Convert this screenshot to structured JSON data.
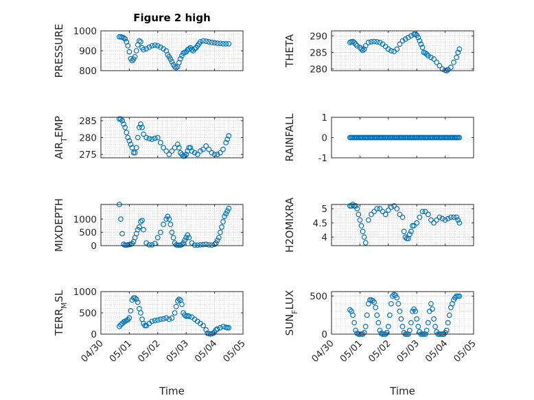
{
  "colors": {
    "marker": "#0072BD",
    "axis": "#262626",
    "grid": "#b0b0b0",
    "background": "#ffffff"
  },
  "chart_data": [
    {
      "type": "scatter",
      "id": "pressure",
      "title": "Figure 2 high",
      "ylabel": "PRESSURE",
      "xlabel": "",
      "ylim": [
        800,
        1000
      ],
      "yticks": [
        800,
        900,
        1000
      ],
      "ytick_labels": [
        "800",
        "900",
        "1000"
      ],
      "xlim": [
        0,
        5
      ],
      "xticks": [
        0,
        1,
        2,
        3,
        4,
        5
      ],
      "xtick_labels": [
        "04/30",
        "05/01",
        "05/02",
        "05/03",
        "05/04",
        "05/05"
      ],
      "show_xtick_labels": false,
      "grid": true,
      "minor_grid": true,
      "marker": "o",
      "x_units": "days from 04/30 00:00",
      "x": [
        0.65,
        0.7,
        0.75,
        0.8,
        0.85,
        0.9,
        0.95,
        1.0,
        1.05,
        1.1,
        1.15,
        1.2,
        1.25,
        1.3,
        1.35,
        1.4,
        1.45,
        1.5,
        1.6,
        1.7,
        1.8,
        1.9,
        2.0,
        2.1,
        2.2,
        2.3,
        2.35,
        2.4,
        2.45,
        2.5,
        2.55,
        2.6,
        2.65,
        2.7,
        2.75,
        2.8,
        2.85,
        2.9,
        2.95,
        3.0,
        3.05,
        3.1,
        3.15,
        3.2,
        3.25,
        3.3,
        3.35,
        3.4,
        3.45,
        3.5,
        3.6,
        3.7,
        3.8,
        3.9,
        4.0,
        4.1,
        4.2,
        4.3,
        4.4,
        4.5
      ],
      "y": [
        970,
        970,
        968,
        965,
        960,
        945,
        925,
        895,
        860,
        850,
        858,
        870,
        900,
        930,
        950,
        945,
        915,
        905,
        910,
        918,
        925,
        928,
        925,
        918,
        910,
        900,
        880,
        870,
        858,
        845,
        830,
        820,
        815,
        820,
        840,
        860,
        875,
        888,
        892,
        895,
        905,
        910,
        915,
        905,
        900,
        910,
        915,
        925,
        935,
        945,
        950,
        948,
        945,
        942,
        940,
        938,
        937,
        935,
        935,
        935
      ]
    },
    {
      "type": "scatter",
      "id": "theta",
      "ylabel": "THETA",
      "xlabel": "",
      "ylim": [
        279.5,
        291.5
      ],
      "yticks": [
        280,
        285,
        290
      ],
      "ytick_labels": [
        "280",
        "285",
        "290"
      ],
      "xlim": [
        0,
        5
      ],
      "xticks": [
        0,
        1,
        2,
        3,
        4,
        5
      ],
      "xtick_labels": [
        "04/30",
        "05/01",
        "05/02",
        "05/03",
        "05/04",
        "05/05"
      ],
      "show_xtick_labels": false,
      "grid": true,
      "minor_grid": true,
      "marker": "o",
      "x_units": "days from 04/30 00:00",
      "x": [
        0.65,
        0.7,
        0.75,
        0.8,
        0.85,
        0.9,
        1.0,
        1.05,
        1.1,
        1.15,
        1.2,
        1.3,
        1.4,
        1.5,
        1.6,
        1.7,
        1.8,
        1.9,
        2.0,
        2.1,
        2.2,
        2.3,
        2.4,
        2.5,
        2.6,
        2.7,
        2.8,
        2.9,
        2.95,
        3.0,
        3.05,
        3.1,
        3.15,
        3.2,
        3.25,
        3.3,
        3.35,
        3.4,
        3.5,
        3.6,
        3.7,
        3.8,
        3.9,
        4.0,
        4.05,
        4.1,
        4.2,
        4.3,
        4.4,
        4.45,
        4.5
      ],
      "y": [
        288,
        288.2,
        288.3,
        288,
        287.5,
        287,
        286.5,
        286,
        285.6,
        286,
        287,
        288,
        288.2,
        288.3,
        288.2,
        288,
        287.5,
        286.8,
        286,
        285.5,
        285.3,
        286,
        287.5,
        288.5,
        289,
        289.5,
        290,
        290.5,
        290.5,
        290.2,
        289.5,
        288.5,
        287.5,
        286.5,
        285,
        284.8,
        284.5,
        284,
        283.5,
        283,
        282,
        281,
        280,
        279.6,
        279.5,
        279.8,
        280.5,
        282,
        283.5,
        285,
        286
      ]
    },
    {
      "type": "scatter",
      "id": "air_temp",
      "ylabel": "AIR_TEMP",
      "xlabel": "",
      "ylim": [
        274,
        286
      ],
      "yticks": [
        275,
        280,
        285
      ],
      "ytick_labels": [
        "275",
        "280",
        "285"
      ],
      "xlim": [
        0,
        5
      ],
      "xticks": [
        0,
        1,
        2,
        3,
        4,
        5
      ],
      "xtick_labels": [
        "04/30",
        "05/01",
        "05/02",
        "05/03",
        "05/04",
        "05/05"
      ],
      "show_xtick_labels": false,
      "grid": true,
      "minor_grid": true,
      "marker": "o",
      "x_units": "days from 04/30 00:00",
      "x": [
        0.65,
        0.7,
        0.75,
        0.8,
        0.85,
        0.9,
        0.95,
        1.0,
        1.05,
        1.1,
        1.15,
        1.2,
        1.25,
        1.3,
        1.35,
        1.4,
        1.45,
        1.5,
        1.6,
        1.7,
        1.8,
        1.9,
        2.0,
        2.1,
        2.2,
        2.3,
        2.4,
        2.5,
        2.6,
        2.7,
        2.75,
        2.8,
        2.85,
        2.9,
        2.95,
        3.0,
        3.05,
        3.1,
        3.15,
        3.2,
        3.3,
        3.4,
        3.5,
        3.6,
        3.7,
        3.8,
        3.9,
        4.0,
        4.1,
        4.2,
        4.3,
        4.4,
        4.45,
        4.5
      ],
      "y": [
        285.5,
        285.5,
        285,
        284,
        283,
        281.5,
        280,
        279,
        278,
        277,
        275.5,
        275.5,
        277,
        280,
        283,
        284,
        283,
        281,
        280,
        279.7,
        279.5,
        279.8,
        280,
        278.5,
        277,
        276,
        275,
        276,
        277,
        278,
        277,
        275.5,
        275,
        274.5,
        274.5,
        275,
        276,
        277,
        277,
        276,
        275.5,
        275,
        276,
        276.5,
        277.5,
        276.5,
        275.5,
        275,
        275,
        275.5,
        276.5,
        278.5,
        279.5,
        280.5
      ]
    },
    {
      "type": "scatter",
      "id": "rainfall",
      "ylabel": "RAINFALL",
      "xlabel": "",
      "ylim": [
        -1,
        1
      ],
      "yticks": [
        -1,
        0,
        1
      ],
      "ytick_labels": [
        "-1",
        "0",
        "1"
      ],
      "xlim": [
        0,
        5
      ],
      "xticks": [
        0,
        1,
        2,
        3,
        4,
        5
      ],
      "xtick_labels": [
        "04/30",
        "05/01",
        "05/02",
        "05/03",
        "05/04",
        "05/05"
      ],
      "show_xtick_labels": false,
      "grid": false,
      "minor_grid": false,
      "marker": "o",
      "x_units": "days from 04/30 00:00",
      "x_range": [
        0.65,
        4.5
      ],
      "constant_y": 0,
      "point_count": 100
    },
    {
      "type": "scatter",
      "id": "mixdepth",
      "ylabel": "MIXDEPTH",
      "xlabel": "",
      "ylim": [
        0,
        1550
      ],
      "yticks": [
        0,
        500,
        1000
      ],
      "ytick_labels": [
        "0",
        "500",
        "1000"
      ],
      "xlim": [
        0,
        5
      ],
      "xticks": [
        0,
        1,
        2,
        3,
        4,
        5
      ],
      "xtick_labels": [
        "04/30",
        "05/01",
        "05/02",
        "05/03",
        "05/04",
        "05/05"
      ],
      "show_xtick_labels": false,
      "grid": true,
      "minor_grid": true,
      "marker": "o",
      "x_units": "days from 04/30 00:00",
      "x": [
        0.65,
        0.7,
        0.75,
        0.8,
        0.85,
        0.9,
        0.95,
        1.0,
        1.05,
        1.1,
        1.15,
        1.2,
        1.25,
        1.3,
        1.35,
        1.4,
        1.45,
        1.5,
        1.6,
        1.7,
        1.8,
        1.9,
        2.0,
        2.1,
        2.2,
        2.3,
        2.35,
        2.4,
        2.45,
        2.5,
        2.55,
        2.6,
        2.65,
        2.7,
        2.75,
        2.8,
        2.85,
        2.9,
        2.95,
        3.0,
        3.05,
        3.1,
        3.2,
        3.3,
        3.4,
        3.5,
        3.6,
        3.7,
        3.8,
        3.9,
        4.0,
        4.05,
        4.1,
        4.15,
        4.2,
        4.25,
        4.3,
        4.35,
        4.4,
        4.45,
        4.5
      ],
      "y": [
        1550,
        1000,
        450,
        50,
        20,
        20,
        30,
        40,
        50,
        80,
        150,
        300,
        450,
        600,
        700,
        900,
        950,
        600,
        100,
        30,
        30,
        80,
        300,
        500,
        800,
        1000,
        1100,
        1000,
        800,
        500,
        300,
        100,
        30,
        20,
        20,
        20,
        40,
        100,
        200,
        300,
        400,
        300,
        100,
        20,
        20,
        30,
        40,
        50,
        30,
        20,
        50,
        100,
        200,
        300,
        500,
        700,
        900,
        1100,
        1200,
        1300,
        1400
      ]
    },
    {
      "type": "scatter",
      "id": "h2omixra",
      "ylabel": "H2OMIXRA",
      "xlabel": "",
      "ylim": [
        3.7,
        5.15
      ],
      "yticks": [
        4,
        4.5,
        5
      ],
      "ytick_labels": [
        "4",
        "4.5",
        "5"
      ],
      "xlim": [
        0,
        5
      ],
      "xticks": [
        0,
        1,
        2,
        3,
        4,
        5
      ],
      "xtick_labels": [
        "04/30",
        "05/01",
        "05/02",
        "05/03",
        "05/04",
        "05/05"
      ],
      "show_xtick_labels": false,
      "grid": true,
      "minor_grid": true,
      "marker": "o",
      "x_units": "days from 04/30 00:00",
      "x": [
        0.65,
        0.7,
        0.75,
        0.8,
        0.85,
        0.9,
        0.95,
        1.0,
        1.05,
        1.1,
        1.15,
        1.2,
        1.3,
        1.4,
        1.5,
        1.6,
        1.7,
        1.8,
        1.9,
        2.0,
        2.1,
        2.2,
        2.3,
        2.4,
        2.5,
        2.55,
        2.6,
        2.65,
        2.7,
        2.75,
        2.8,
        2.85,
        2.9,
        3.0,
        3.1,
        3.2,
        3.3,
        3.4,
        3.5,
        3.6,
        3.7,
        3.8,
        3.9,
        4.0,
        4.1,
        4.2,
        4.3,
        4.4,
        4.45,
        4.5
      ],
      "y": [
        5.1,
        5.1,
        5.15,
        5.1,
        5.1,
        5,
        4.8,
        4.6,
        4.4,
        4.2,
        4.0,
        3.8,
        4.6,
        4.8,
        4.9,
        5.0,
        5.0,
        4.9,
        4.8,
        4.95,
        5.05,
        5.1,
        5.0,
        4.8,
        4.7,
        4.2,
        4.0,
        3.95,
        3.95,
        4.1,
        4.2,
        4.4,
        4.4,
        4.5,
        4.7,
        4.9,
        4.9,
        4.8,
        4.6,
        4.5,
        4.6,
        4.7,
        4.65,
        4.6,
        4.65,
        4.7,
        4.7,
        4.7,
        4.6,
        4.5
      ]
    },
    {
      "type": "scatter",
      "id": "terr_msl",
      "ylabel": "TERR_MSL",
      "xlabel": "Time",
      "ylim": [
        0,
        1000
      ],
      "yticks": [
        0,
        500,
        1000
      ],
      "ytick_labels": [
        "0",
        "500",
        "1000"
      ],
      "xlim": [
        0,
        5
      ],
      "xticks": [
        0,
        1,
        2,
        3,
        4,
        5
      ],
      "xtick_labels": [
        "04/30",
        "05/01",
        "05/02",
        "05/03",
        "05/04",
        "05/05"
      ],
      "show_xtick_labels": true,
      "grid": true,
      "minor_grid": true,
      "marker": "o",
      "x_units": "days from 04/30 00:00",
      "x": [
        0.65,
        0.7,
        0.75,
        0.8,
        0.85,
        0.9,
        0.95,
        1.0,
        1.05,
        1.1,
        1.15,
        1.2,
        1.25,
        1.3,
        1.35,
        1.4,
        1.45,
        1.5,
        1.55,
        1.6,
        1.7,
        1.8,
        1.9,
        2.0,
        2.1,
        2.2,
        2.3,
        2.4,
        2.5,
        2.6,
        2.65,
        2.7,
        2.75,
        2.8,
        2.85,
        2.9,
        2.95,
        3.0,
        3.05,
        3.1,
        3.2,
        3.3,
        3.4,
        3.5,
        3.6,
        3.7,
        3.75,
        3.8,
        3.85,
        3.9,
        3.95,
        4.0,
        4.05,
        4.1,
        4.2,
        4.3,
        4.4,
        4.45,
        4.5
      ],
      "y": [
        180,
        220,
        250,
        280,
        300,
        320,
        340,
        380,
        550,
        800,
        850,
        850,
        820,
        750,
        600,
        500,
        350,
        250,
        200,
        200,
        250,
        300,
        320,
        330,
        350,
        360,
        380,
        350,
        380,
        500,
        650,
        780,
        820,
        800,
        700,
        500,
        450,
        420,
        430,
        420,
        400,
        350,
        300,
        250,
        200,
        100,
        20,
        10,
        5,
        10,
        20,
        50,
        100,
        120,
        150,
        180,
        160,
        150,
        150
      ]
    },
    {
      "type": "scatter",
      "id": "sun_flux",
      "ylabel": "SUN_FLUX",
      "xlabel": "Time",
      "ylim": [
        0,
        560
      ],
      "yticks": [
        0,
        500
      ],
      "ytick_labels": [
        "0",
        "500"
      ],
      "xlim": [
        0,
        5
      ],
      "xticks": [
        0,
        1,
        2,
        3,
        4,
        5
      ],
      "xtick_labels": [
        "04/30",
        "05/01",
        "05/02",
        "05/03",
        "05/04",
        "05/05"
      ],
      "show_xtick_labels": true,
      "grid": true,
      "minor_grid": true,
      "marker": "o",
      "x_units": "days from 04/30 00:00",
      "x": [
        0.65,
        0.7,
        0.75,
        0.8,
        0.85,
        0.9,
        0.95,
        1.0,
        1.05,
        1.1,
        1.15,
        1.2,
        1.25,
        1.3,
        1.35,
        1.4,
        1.45,
        1.5,
        1.55,
        1.6,
        1.65,
        1.7,
        1.75,
        1.8,
        1.85,
        1.9,
        1.95,
        2.0,
        2.05,
        2.1,
        2.15,
        2.2,
        2.25,
        2.3,
        2.35,
        2.4,
        2.45,
        2.5,
        2.55,
        2.6,
        2.65,
        2.7,
        2.75,
        2.8,
        2.85,
        2.9,
        2.95,
        3.0,
        3.05,
        3.1,
        3.15,
        3.2,
        3.25,
        3.3,
        3.35,
        3.4,
        3.45,
        3.5,
        3.55,
        3.6,
        3.65,
        3.7,
        3.75,
        3.8,
        3.85,
        3.9,
        3.95,
        4.0,
        4.05,
        4.1,
        4.15,
        4.2,
        4.25,
        4.3,
        4.35,
        4.4,
        4.45,
        4.5
      ],
      "y": [
        320,
        300,
        250,
        150,
        50,
        10,
        0,
        0,
        0,
        0,
        20,
        100,
        250,
        400,
        450,
        450,
        440,
        420,
        350,
        250,
        150,
        50,
        10,
        0,
        0,
        0,
        20,
        100,
        250,
        400,
        500,
        520,
        510,
        480,
        400,
        300,
        200,
        100,
        20,
        0,
        0,
        0,
        50,
        150,
        300,
        330,
        300,
        200,
        100,
        30,
        0,
        0,
        0,
        0,
        50,
        150,
        300,
        400,
        330,
        200,
        100,
        30,
        0,
        0,
        0,
        0,
        0,
        20,
        50,
        150,
        250,
        350,
        400,
        450,
        480,
        500,
        500,
        500
      ]
    }
  ]
}
